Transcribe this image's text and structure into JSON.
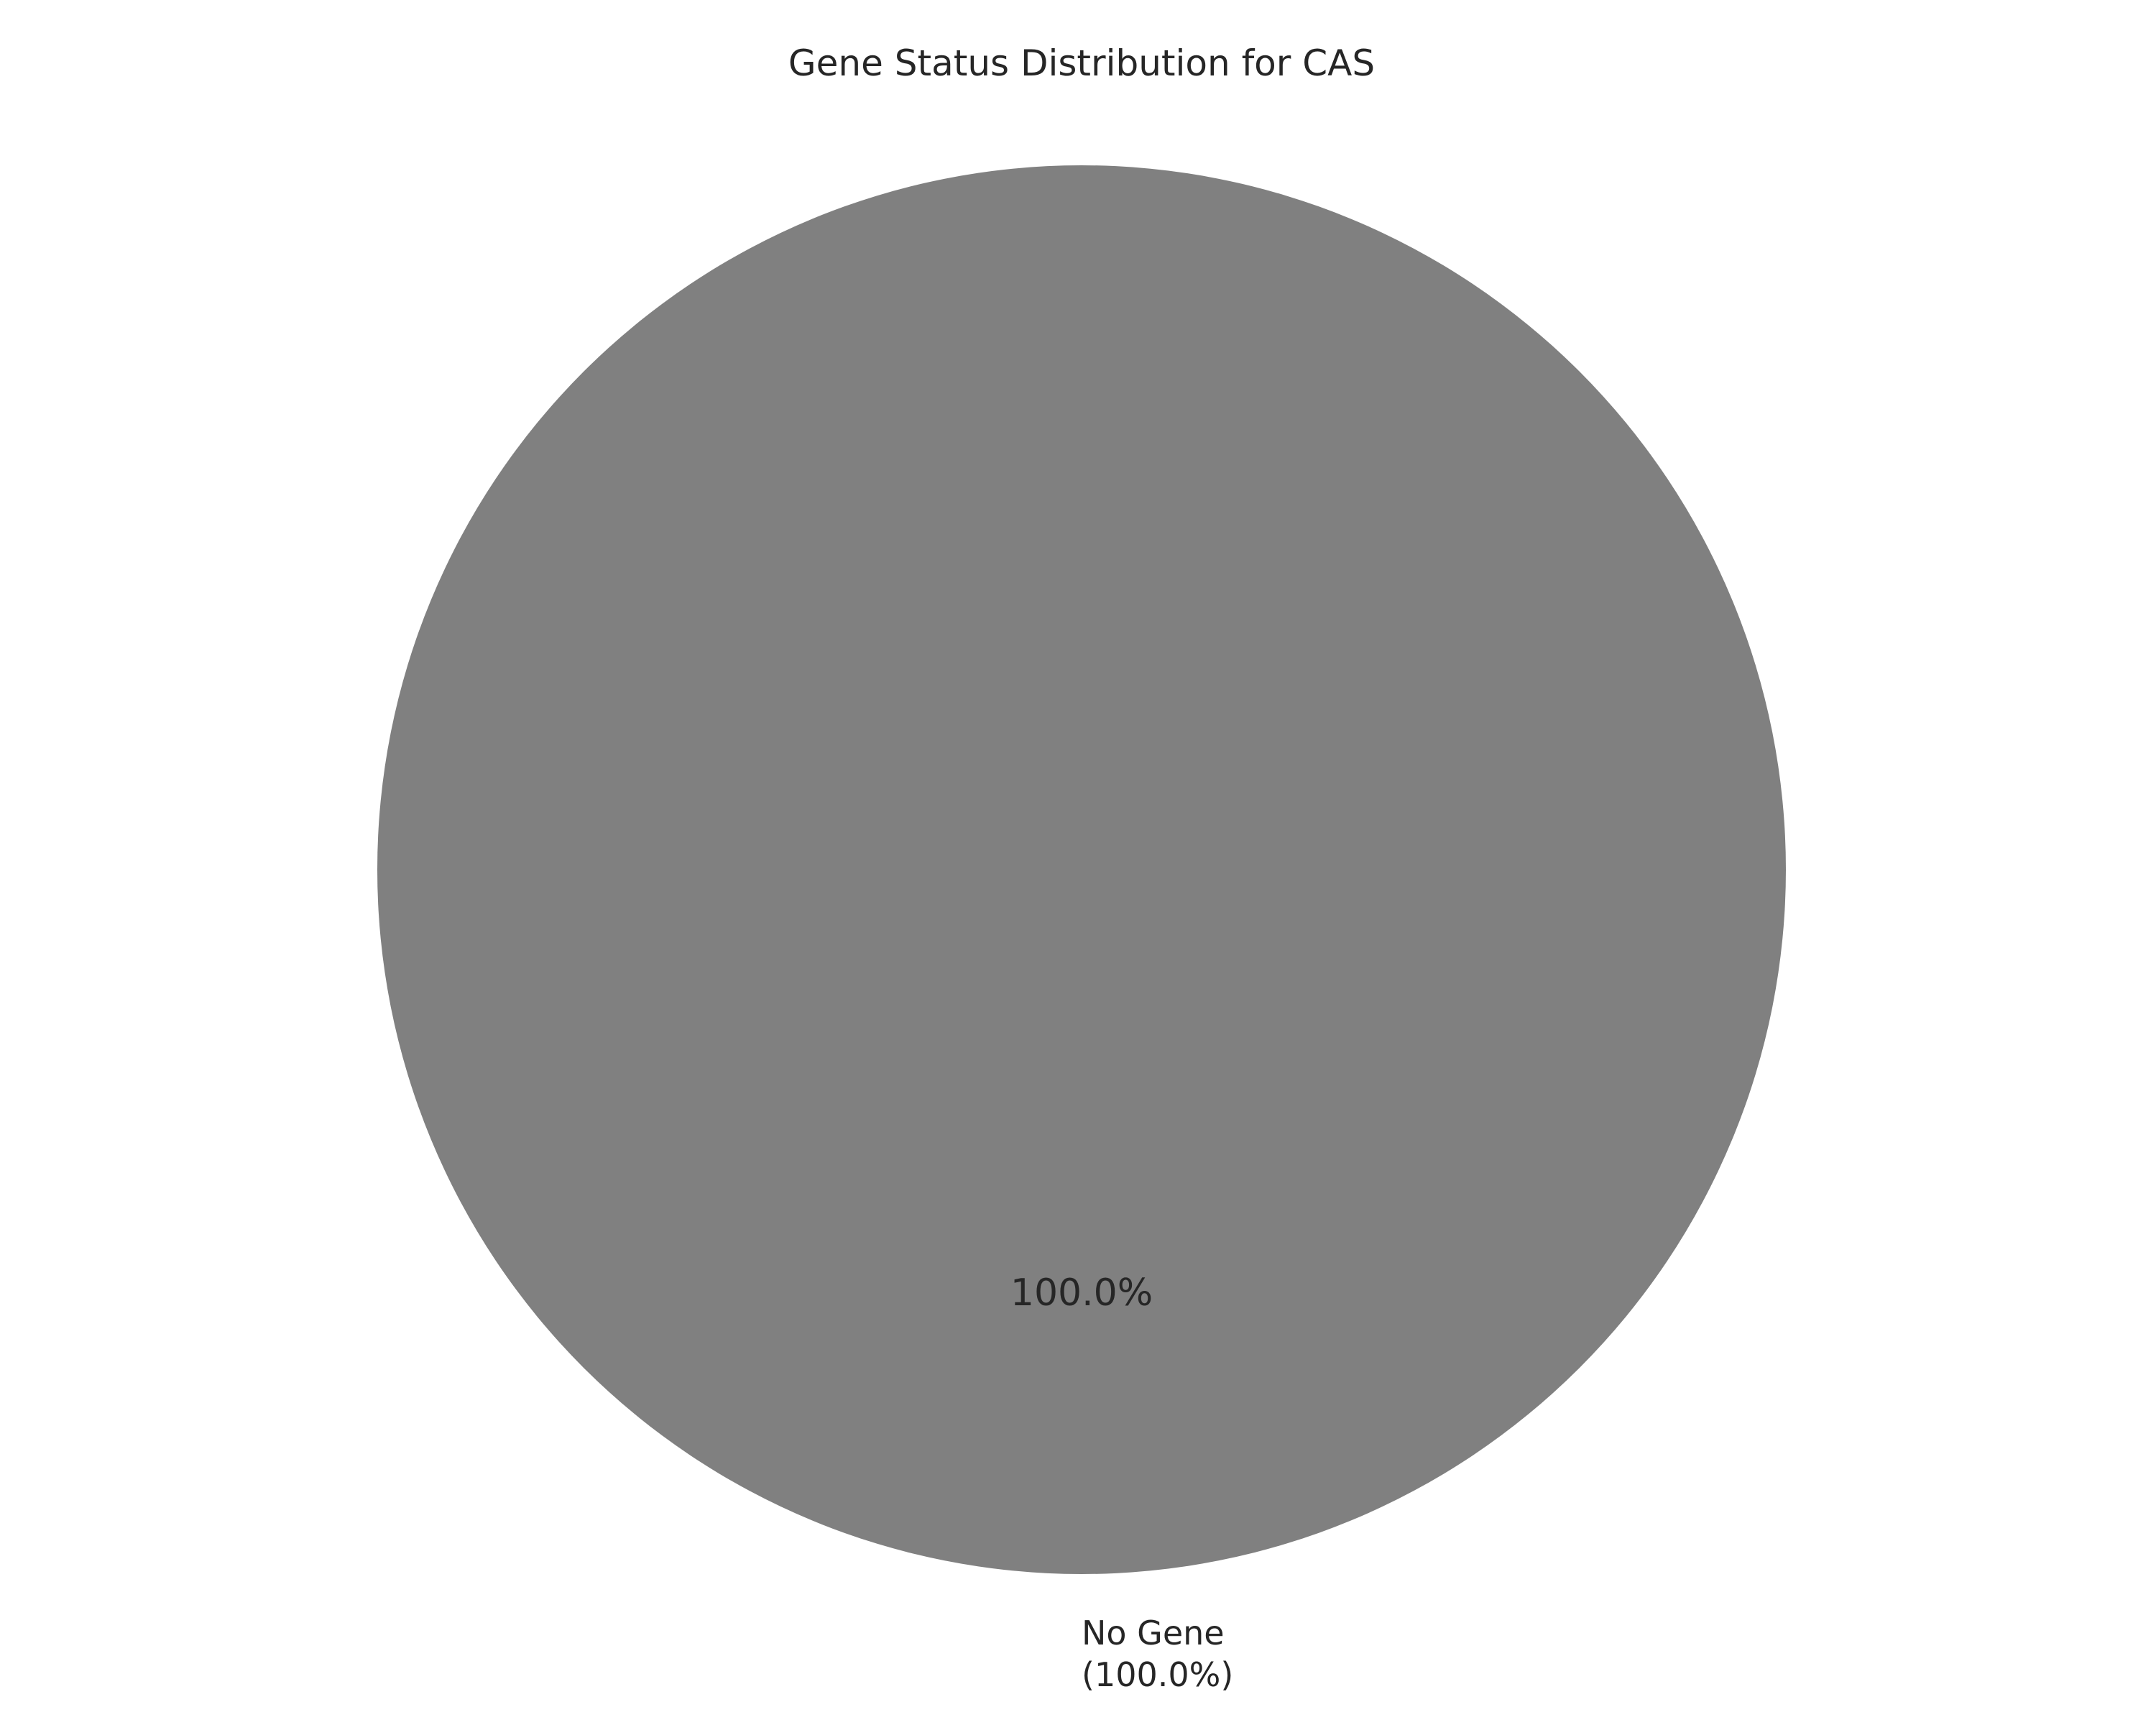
{
  "chart_data": {
    "type": "pie",
    "title": "Gene Status Distribution for CAS",
    "slices": [
      {
        "label": "No Gene",
        "value": 100.0,
        "pct_text": "100.0%",
        "label_line1": "No Gene",
        "label_line2": "(100.0%)",
        "color": "#808080"
      }
    ],
    "legend": "none",
    "grid": false
  }
}
